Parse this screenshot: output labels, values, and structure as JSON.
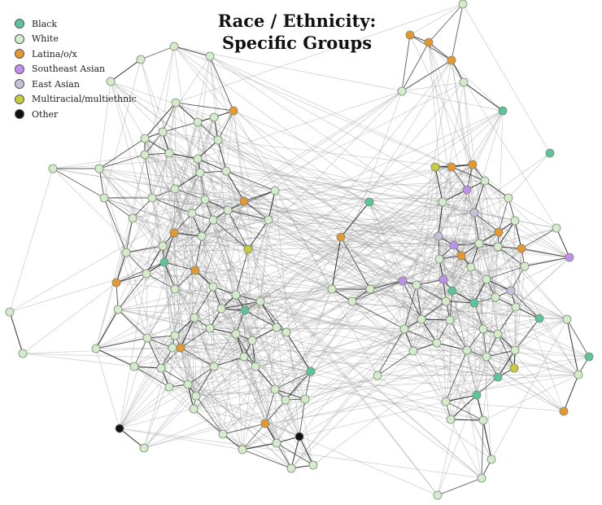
{
  "title": {
    "line1": "Race / Ethnicity:",
    "line2": "Specific Groups"
  },
  "legend": [
    {
      "label": "Black",
      "color": "#5cc49a"
    },
    {
      "label": "White",
      "color": "#d4ebcc"
    },
    {
      "label": "Latina/o/x",
      "color": "#e8962e"
    },
    {
      "label": "Southeast Asian",
      "color": "#c08ef0"
    },
    {
      "label": "East Asian",
      "color": "#c6c0dc"
    },
    {
      "label": "Multiracial/multiethnic",
      "color": "#c9cc3a"
    },
    {
      "label": "Other",
      "color": "#111111"
    }
  ]
}
